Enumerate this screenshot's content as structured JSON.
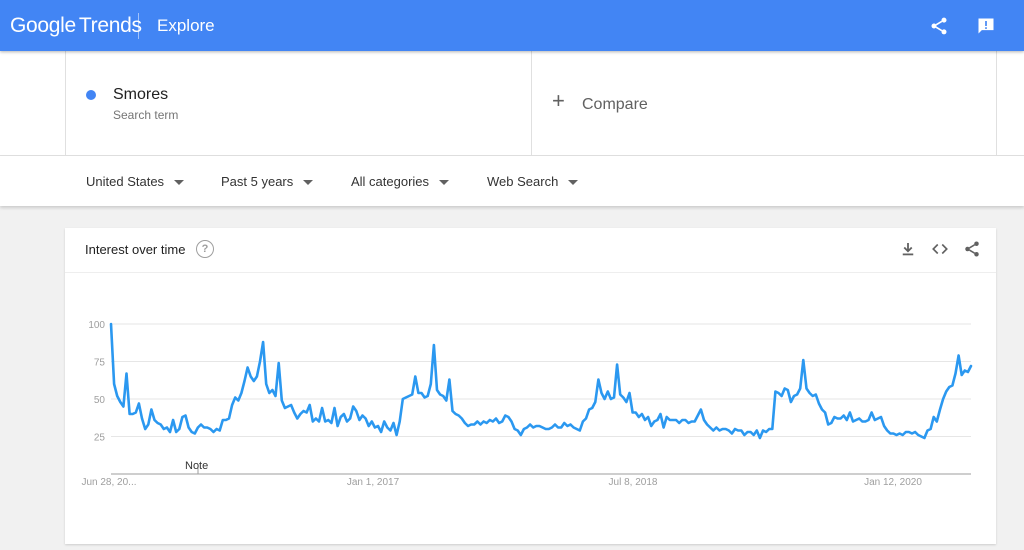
{
  "header": {
    "logo_google": "Google",
    "logo_trends": "Trends",
    "page_title": "Explore",
    "share_icon": "share-icon",
    "feedback_icon": "feedback-icon"
  },
  "search": {
    "term": "Smores",
    "term_type": "Search term",
    "term_color": "#4285f4",
    "compare_label": "Compare"
  },
  "filters": [
    {
      "label": "United States"
    },
    {
      "label": "Past 5 years"
    },
    {
      "label": "All categories"
    },
    {
      "label": "Web Search"
    }
  ],
  "card": {
    "title": "Interest over time",
    "help_icon": "help-icon",
    "actions": [
      "download-icon",
      "embed-icon",
      "share-icon"
    ]
  },
  "chart_data": {
    "type": "line",
    "series": [
      {
        "color": "#2b98f0",
        "values": [
          100,
          60,
          52,
          48,
          45,
          67,
          40,
          40,
          41,
          47,
          37,
          30,
          33,
          43,
          36,
          34,
          33,
          30,
          31,
          28,
          36,
          28,
          30,
          38,
          39,
          31,
          28,
          27,
          31,
          33,
          31,
          31,
          30,
          28,
          30,
          29,
          36,
          36,
          37,
          46,
          51,
          49,
          54,
          62,
          71,
          65,
          62,
          65,
          75,
          88,
          60,
          54,
          56,
          52,
          74,
          49,
          44,
          45,
          46,
          41,
          37,
          40,
          42,
          41,
          46,
          35,
          37,
          35,
          44,
          35,
          36,
          34,
          44,
          32,
          38,
          40,
          35,
          37,
          45,
          42,
          36,
          39,
          37,
          32,
          35,
          31,
          32,
          28,
          35,
          31,
          29,
          34,
          26,
          35,
          50,
          51,
          52,
          53,
          65,
          54,
          54,
          51,
          52,
          60,
          86,
          56,
          53,
          52,
          49,
          63,
          42,
          40,
          39,
          37,
          34,
          32,
          33,
          33,
          35,
          33,
          35,
          34,
          36,
          35,
          37,
          34,
          35,
          39,
          38,
          35,
          30,
          29,
          26,
          30,
          31,
          33,
          31,
          32,
          32,
          31,
          30,
          30,
          31,
          33,
          31,
          31,
          34,
          32,
          33,
          31,
          30,
          29,
          35,
          37,
          43,
          44,
          48,
          63,
          54,
          50,
          55,
          50,
          51,
          73,
          53,
          51,
          48,
          54,
          41,
          41,
          38,
          40,
          36,
          38,
          32,
          35,
          36,
          40,
          31,
          38,
          36,
          36,
          36,
          34,
          36,
          36,
          34,
          35,
          35,
          39,
          43,
          36,
          33,
          31,
          29,
          31,
          29,
          30,
          30,
          29,
          27,
          30,
          29,
          29,
          26,
          28,
          28,
          26,
          29,
          24,
          29,
          28,
          30,
          30,
          55,
          54,
          52,
          57,
          56,
          48,
          52,
          53,
          57,
          76,
          57,
          54,
          52,
          53,
          47,
          43,
          41,
          33,
          34,
          38,
          37,
          37,
          39,
          36,
          41,
          35,
          36,
          37,
          35,
          35,
          36,
          41,
          36,
          37,
          38,
          32,
          29,
          27,
          27,
          26,
          27,
          26,
          28,
          28,
          27,
          28,
          26,
          25,
          24,
          29,
          30,
          38,
          35,
          43,
          50,
          55,
          58,
          59,
          67,
          79,
          66,
          69,
          68,
          72
        ],
        "first_date": "2015-06-28",
        "interval_days": 7
      }
    ],
    "x_tick_labels": [
      "Jun 28, 20...",
      "Jan 1, 2017",
      "Jul 8, 2018",
      "Jan 12, 2020"
    ],
    "y_ticks": [
      25,
      50,
      75,
      100
    ],
    "ylim": [
      0,
      100
    ],
    "annotations": [
      {
        "label": "Note"
      }
    ],
    "grid": true,
    "legend": "none"
  }
}
